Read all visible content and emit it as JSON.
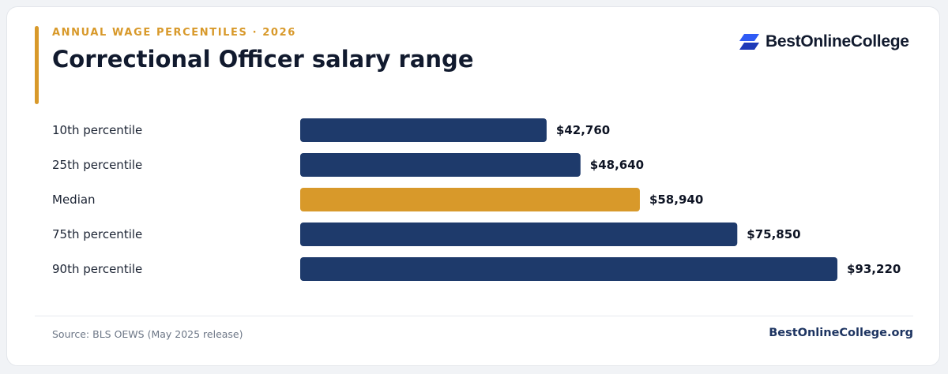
{
  "header": {
    "kicker": "ANNUAL WAGE PERCENTILES · 2026",
    "title": "Correctional Officer salary range"
  },
  "brand": {
    "logo_text": "BestOnlineCollege",
    "logo_icon": "stacked-parallelogram-icon",
    "logo_colors": [
      "#2f5bf5",
      "#1e3ab8"
    ]
  },
  "colors": {
    "bar_default": "#1e3a6b",
    "bar_highlight": "#d8992a",
    "accent": "#d8992a",
    "title": "#111a2e"
  },
  "chart_data": {
    "type": "bar",
    "orientation": "horizontal",
    "categories": [
      "10th percentile",
      "25th percentile",
      "Median",
      "75th percentile",
      "90th percentile"
    ],
    "values": [
      42760,
      48640,
      58940,
      75850,
      93220
    ],
    "value_labels": [
      "$42,760",
      "$48,640",
      "$58,940",
      "$75,850",
      "$93,220"
    ],
    "highlight": "Median",
    "xlim": [
      0,
      93220
    ],
    "grid": false,
    "legend": "none"
  },
  "footer": {
    "source": "Source: BLS OEWS (May 2025 release)",
    "site": "BestOnlineCollege.org"
  }
}
